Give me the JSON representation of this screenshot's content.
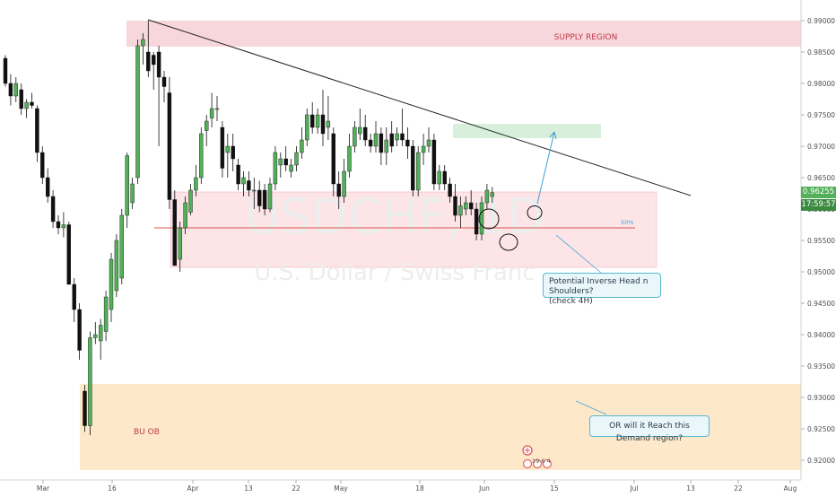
{
  "chart_data": {
    "type": "candlestick",
    "watermark": {
      "symbol": "USDCHF, 1D",
      "name": "U.S. Dollar / Swiss Franc"
    },
    "y_axis": {
      "ylim": [
        0.9175,
        0.9935
      ],
      "ticks": [
        0.99,
        0.985,
        0.98,
        0.975,
        0.97,
        0.965,
        0.96,
        0.955,
        0.95,
        0.945,
        0.94,
        0.935,
        0.93,
        0.925,
        0.92
      ],
      "tick_labels": [
        "0.99000",
        "0.98500",
        "0.98000",
        "0.97500",
        "0.97000",
        "0.96500",
        "0.96000",
        "0.95500",
        "0.95000",
        "0.94500",
        "0.94000",
        "0.93500",
        "0.93000",
        "0.92500",
        "0.92000"
      ],
      "last_price": "0.96255",
      "countdown": "17:59:57"
    },
    "x_axis": {
      "tick_labels": [
        "Mar",
        "16",
        "Apr",
        "13",
        "22",
        "May",
        "18",
        "Jun",
        "15",
        "Jul",
        "13",
        "22",
        "Aug"
      ]
    },
    "zones": [
      {
        "label": "SUPPLY REGION",
        "color": "#f8d7dc"
      },
      {
        "label": "",
        "color": "#fce4e7"
      },
      {
        "label": "",
        "color": "#d8efdb"
      },
      {
        "label": "BU OB",
        "color": "#fde8c9"
      }
    ],
    "level_50_label": "50%",
    "annotations": [
      "Potential Inverse Head n Shoulders?\n(check 4H)",
      "OR will it Reach this Demand region?"
    ],
    "events_label": "19 6 4",
    "colors": {
      "up": "#53b059",
      "down": "#111111",
      "trendline": "#222222",
      "fifty_line": "#d9534f",
      "arrow": "#3fa3d6",
      "last_price_bg": "#53b059"
    },
    "candles": [
      {
        "o": 0.984,
        "h": 0.9845,
        "l": 0.9795,
        "c": 0.98
      },
      {
        "o": 0.98,
        "h": 0.9815,
        "l": 0.9765,
        "c": 0.978
      },
      {
        "o": 0.978,
        "h": 0.981,
        "l": 0.977,
        "c": 0.98
      },
      {
        "o": 0.979,
        "h": 0.98,
        "l": 0.975,
        "c": 0.976
      },
      {
        "o": 0.976,
        "h": 0.9775,
        "l": 0.9745,
        "c": 0.977
      },
      {
        "o": 0.977,
        "h": 0.9785,
        "l": 0.976,
        "c": 0.9765
      },
      {
        "o": 0.976,
        "h": 0.9765,
        "l": 0.9675,
        "c": 0.969
      },
      {
        "o": 0.969,
        "h": 0.97,
        "l": 0.964,
        "c": 0.965
      },
      {
        "o": 0.965,
        "h": 0.9665,
        "l": 0.961,
        "c": 0.962
      },
      {
        "o": 0.962,
        "h": 0.963,
        "l": 0.957,
        "c": 0.958
      },
      {
        "o": 0.958,
        "h": 0.959,
        "l": 0.956,
        "c": 0.957
      },
      {
        "o": 0.957,
        "h": 0.9595,
        "l": 0.9555,
        "c": 0.9575
      },
      {
        "o": 0.9575,
        "h": 0.958,
        "l": 0.948,
        "c": 0.948
      },
      {
        "o": 0.948,
        "h": 0.949,
        "l": 0.942,
        "c": 0.944
      },
      {
        "o": 0.944,
        "h": 0.945,
        "l": 0.936,
        "c": 0.9375
      },
      {
        "o": 0.931,
        "h": 0.932,
        "l": 0.9245,
        "c": 0.9255
      },
      {
        "o": 0.9255,
        "h": 0.9405,
        "l": 0.924,
        "c": 0.9395
      },
      {
        "o": 0.9395,
        "h": 0.942,
        "l": 0.9385,
        "c": 0.94
      },
      {
        "o": 0.939,
        "h": 0.9425,
        "l": 0.936,
        "c": 0.9415
      },
      {
        "o": 0.9405,
        "h": 0.947,
        "l": 0.939,
        "c": 0.946
      },
      {
        "o": 0.944,
        "h": 0.953,
        "l": 0.942,
        "c": 0.952
      },
      {
        "o": 0.947,
        "h": 0.956,
        "l": 0.946,
        "c": 0.955
      },
      {
        "o": 0.949,
        "h": 0.96,
        "l": 0.948,
        "c": 0.959
      },
      {
        "o": 0.959,
        "h": 0.969,
        "l": 0.957,
        "c": 0.9685
      },
      {
        "o": 0.961,
        "h": 0.965,
        "l": 0.96,
        "c": 0.964
      },
      {
        "o": 0.965,
        "h": 0.987,
        "l": 0.964,
        "c": 0.986
      },
      {
        "o": 0.986,
        "h": 0.988,
        "l": 0.983,
        "c": 0.987
      },
      {
        "o": 0.985,
        "h": 0.99,
        "l": 0.981,
        "c": 0.982
      },
      {
        "o": 0.9845,
        "h": 0.985,
        "l": 0.979,
        "c": 0.983
      },
      {
        "o": 0.985,
        "h": 0.986,
        "l": 0.97,
        "c": 0.981
      },
      {
        "o": 0.981,
        "h": 0.982,
        "l": 0.977,
        "c": 0.9795
      },
      {
        "o": 0.9785,
        "h": 0.981,
        "l": 0.96,
        "c": 0.9615
      },
      {
        "o": 0.9615,
        "h": 0.963,
        "l": 0.951,
        "c": 0.951
      },
      {
        "o": 0.952,
        "h": 0.958,
        "l": 0.95,
        "c": 0.957
      },
      {
        "o": 0.957,
        "h": 0.962,
        "l": 0.956,
        "c": 0.961
      },
      {
        "o": 0.9595,
        "h": 0.964,
        "l": 0.959,
        "c": 0.963
      },
      {
        "o": 0.963,
        "h": 0.967,
        "l": 0.962,
        "c": 0.965
      },
      {
        "o": 0.965,
        "h": 0.973,
        "l": 0.964,
        "c": 0.972
      },
      {
        "o": 0.9725,
        "h": 0.975,
        "l": 0.97,
        "c": 0.974
      },
      {
        "o": 0.9745,
        "h": 0.9785,
        "l": 0.973,
        "c": 0.976
      },
      {
        "o": 0.976,
        "h": 0.978,
        "l": 0.974,
        "c": 0.976
      },
      {
        "o": 0.973,
        "h": 0.974,
        "l": 0.965,
        "c": 0.9665
      },
      {
        "o": 0.969,
        "h": 0.972,
        "l": 0.965,
        "c": 0.97
      },
      {
        "o": 0.97,
        "h": 0.972,
        "l": 0.966,
        "c": 0.968
      },
      {
        "o": 0.967,
        "h": 0.968,
        "l": 0.963,
        "c": 0.964
      },
      {
        "o": 0.964,
        "h": 0.966,
        "l": 0.962,
        "c": 0.965
      },
      {
        "o": 0.9645,
        "h": 0.966,
        "l": 0.962,
        "c": 0.963
      },
      {
        "o": 0.963,
        "h": 0.965,
        "l": 0.96,
        "c": 0.963
      },
      {
        "o": 0.963,
        "h": 0.9645,
        "l": 0.9595,
        "c": 0.9605
      },
      {
        "o": 0.963,
        "h": 0.964,
        "l": 0.959,
        "c": 0.96
      },
      {
        "o": 0.96,
        "h": 0.965,
        "l": 0.9595,
        "c": 0.964
      },
      {
        "o": 0.964,
        "h": 0.97,
        "l": 0.963,
        "c": 0.969
      },
      {
        "o": 0.967,
        "h": 0.969,
        "l": 0.965,
        "c": 0.968
      },
      {
        "o": 0.968,
        "h": 0.97,
        "l": 0.966,
        "c": 0.967
      },
      {
        "o": 0.966,
        "h": 0.968,
        "l": 0.965,
        "c": 0.967
      },
      {
        "o": 0.967,
        "h": 0.97,
        "l": 0.966,
        "c": 0.969
      },
      {
        "o": 0.969,
        "h": 0.973,
        "l": 0.968,
        "c": 0.971
      },
      {
        "o": 0.971,
        "h": 0.976,
        "l": 0.97,
        "c": 0.975
      },
      {
        "o": 0.975,
        "h": 0.977,
        "l": 0.972,
        "c": 0.973
      },
      {
        "o": 0.973,
        "h": 0.976,
        "l": 0.972,
        "c": 0.975
      },
      {
        "o": 0.975,
        "h": 0.979,
        "l": 0.97,
        "c": 0.972
      },
      {
        "o": 0.973,
        "h": 0.978,
        "l": 0.971,
        "c": 0.974
      },
      {
        "o": 0.972,
        "h": 0.973,
        "l": 0.962,
        "c": 0.964
      },
      {
        "o": 0.964,
        "h": 0.966,
        "l": 0.96,
        "c": 0.962
      },
      {
        "o": 0.962,
        "h": 0.968,
        "l": 0.961,
        "c": 0.966
      },
      {
        "o": 0.966,
        "h": 0.972,
        "l": 0.965,
        "c": 0.97
      },
      {
        "o": 0.97,
        "h": 0.974,
        "l": 0.969,
        "c": 0.973
      },
      {
        "o": 0.972,
        "h": 0.976,
        "l": 0.971,
        "c": 0.973
      },
      {
        "o": 0.973,
        "h": 0.975,
        "l": 0.97,
        "c": 0.971
      },
      {
        "o": 0.971,
        "h": 0.972,
        "l": 0.969,
        "c": 0.97
      },
      {
        "o": 0.97,
        "h": 0.974,
        "l": 0.969,
        "c": 0.972
      },
      {
        "o": 0.972,
        "h": 0.973,
        "l": 0.967,
        "c": 0.969
      },
      {
        "o": 0.969,
        "h": 0.973,
        "l": 0.967,
        "c": 0.971
      },
      {
        "o": 0.972,
        "h": 0.974,
        "l": 0.969,
        "c": 0.97
      },
      {
        "o": 0.971,
        "h": 0.973,
        "l": 0.97,
        "c": 0.972
      },
      {
        "o": 0.972,
        "h": 0.976,
        "l": 0.97,
        "c": 0.971
      },
      {
        "o": 0.971,
        "h": 0.973,
        "l": 0.968,
        "c": 0.97
      },
      {
        "o": 0.97,
        "h": 0.971,
        "l": 0.962,
        "c": 0.963
      },
      {
        "o": 0.963,
        "h": 0.97,
        "l": 0.962,
        "c": 0.969
      },
      {
        "o": 0.969,
        "h": 0.972,
        "l": 0.967,
        "c": 0.97
      },
      {
        "o": 0.97,
        "h": 0.973,
        "l": 0.969,
        "c": 0.971
      },
      {
        "o": 0.971,
        "h": 0.972,
        "l": 0.963,
        "c": 0.964
      },
      {
        "o": 0.964,
        "h": 0.967,
        "l": 0.963,
        "c": 0.966
      },
      {
        "o": 0.966,
        "h": 0.967,
        "l": 0.963,
        "c": 0.964
      },
      {
        "o": 0.964,
        "h": 0.965,
        "l": 0.961,
        "c": 0.962
      },
      {
        "o": 0.962,
        "h": 0.964,
        "l": 0.958,
        "c": 0.959
      },
      {
        "o": 0.959,
        "h": 0.962,
        "l": 0.957,
        "c": 0.9605
      },
      {
        "o": 0.96,
        "h": 0.962,
        "l": 0.959,
        "c": 0.961
      },
      {
        "o": 0.961,
        "h": 0.963,
        "l": 0.959,
        "c": 0.96
      },
      {
        "o": 0.96,
        "h": 0.961,
        "l": 0.955,
        "c": 0.956
      },
      {
        "o": 0.956,
        "h": 0.962,
        "l": 0.955,
        "c": 0.961
      },
      {
        "o": 0.961,
        "h": 0.964,
        "l": 0.96,
        "c": 0.963
      },
      {
        "o": 0.962,
        "h": 0.9635,
        "l": 0.961,
        "c": 0.9626
      }
    ]
  }
}
